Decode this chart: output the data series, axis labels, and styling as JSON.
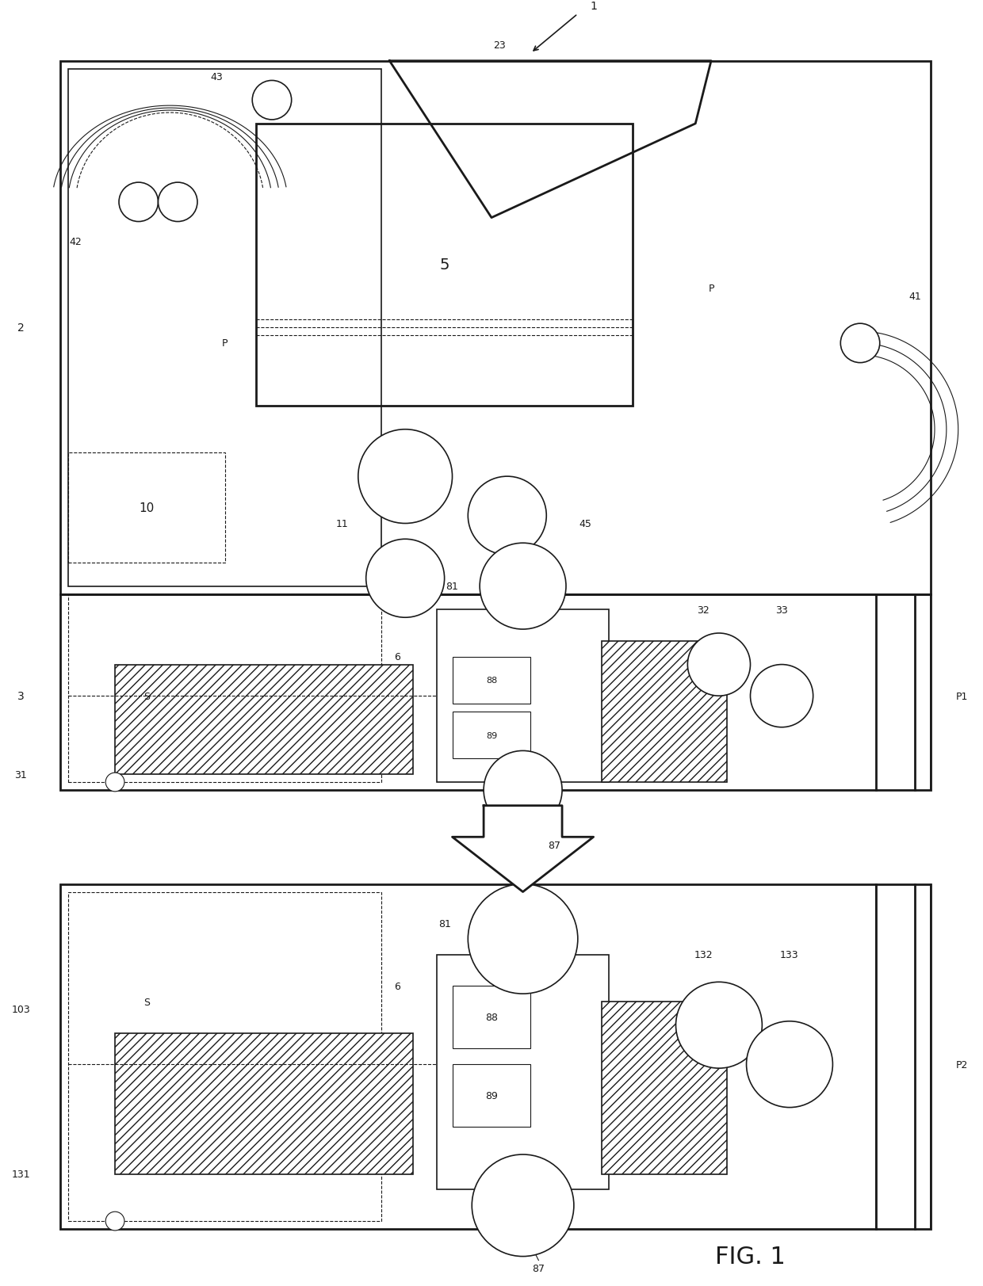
{
  "fig_width": 12.4,
  "fig_height": 16.24,
  "bg_color": "#ffffff",
  "lc": "#1a1a1a",
  "labels": {
    "1": "1",
    "2": "2",
    "3": "3",
    "5": "5",
    "6": "6",
    "10": "10",
    "11": "11",
    "23": "23",
    "31": "31",
    "32": "32",
    "33": "33",
    "41": "41",
    "42": "42",
    "43": "43",
    "45": "45",
    "81": "81",
    "87": "87",
    "88": "88",
    "89": "89",
    "P": "P",
    "P1": "P1",
    "P2": "P2",
    "S": "S",
    "103": "103",
    "131": "131",
    "132": "132",
    "133": "133",
    "FIG1": "FIG. 1"
  }
}
